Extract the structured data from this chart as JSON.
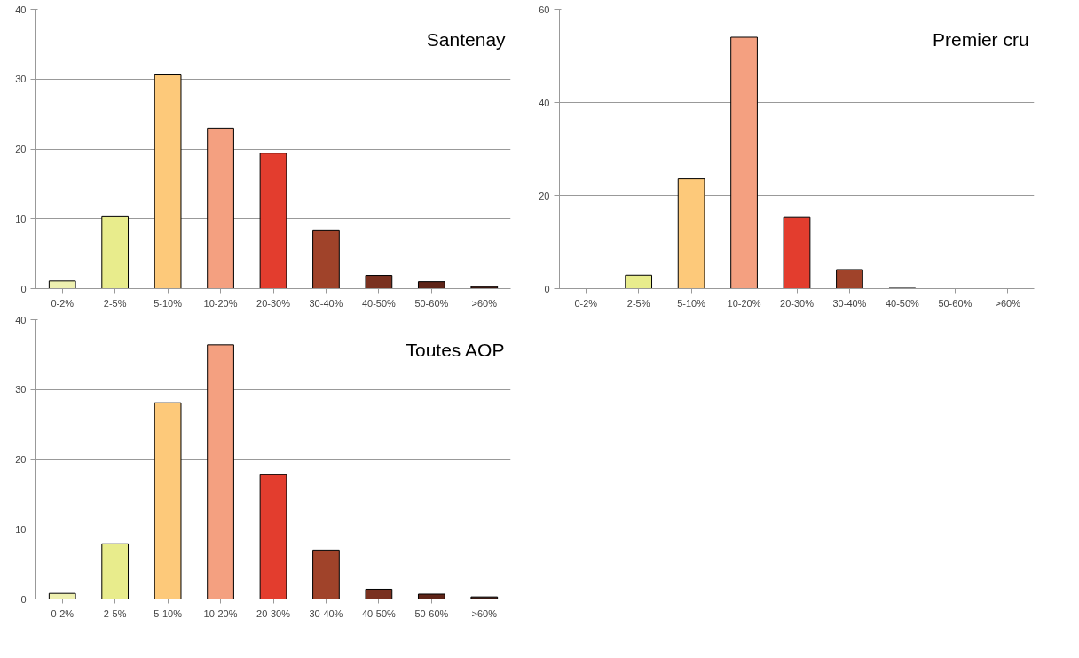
{
  "chart_data": [
    {
      "type": "bar",
      "title": "Santenay",
      "categories": [
        "0-2%",
        "2-5%",
        "5-10%",
        "10-20%",
        "20-30%",
        "30-40%",
        "40-50%",
        "50-60%",
        ">60%"
      ],
      "values": [
        1.1,
        10.3,
        30.6,
        23.0,
        19.4,
        8.4,
        1.9,
        1.0,
        0.3
      ],
      "colors": [
        "#eef0b0",
        "#e8ec8c",
        "#fdc97a",
        "#f4a080",
        "#e33d2e",
        "#a0432a",
        "#7a3120",
        "#5e2418",
        "#3a1810"
      ],
      "ylim": [
        0,
        40
      ],
      "yticks": [
        0,
        10,
        20,
        30,
        40
      ],
      "grid": "y"
    },
    {
      "type": "bar",
      "title": "Premier cru",
      "categories": [
        "0-2%",
        "2-5%",
        "5-10%",
        "10-20%",
        "20-30%",
        "30-40%",
        "40-50%",
        "50-60%",
        ">60%"
      ],
      "values": [
        null,
        2.9,
        23.6,
        54.0,
        15.3,
        4.1,
        0.1,
        null,
        null
      ],
      "colors": [
        "#eef0b0",
        "#e8ec8c",
        "#fdc97a",
        "#f4a080",
        "#e33d2e",
        "#a0432a",
        "#7a3120",
        "#5e2418",
        "#3a1810"
      ],
      "ylim": [
        0,
        60
      ],
      "yticks": [
        0,
        20,
        40,
        60
      ],
      "grid": "y"
    },
    {
      "type": "bar",
      "title": "Toutes AOP",
      "categories": [
        "0-2%",
        "2-5%",
        "5-10%",
        "10-20%",
        "20-30%",
        "30-40%",
        "40-50%",
        "50-60%",
        ">60%"
      ],
      "values": [
        0.8,
        7.9,
        28.1,
        36.4,
        17.8,
        7.0,
        1.4,
        0.7,
        0.3
      ],
      "colors": [
        "#eef0b0",
        "#e8ec8c",
        "#fdc97a",
        "#f4a080",
        "#e33d2e",
        "#a0432a",
        "#7a3120",
        "#5e2418",
        "#3a1810"
      ],
      "ylim": [
        0,
        40
      ],
      "yticks": [
        0,
        10,
        20,
        30,
        40
      ],
      "grid": "y"
    }
  ]
}
